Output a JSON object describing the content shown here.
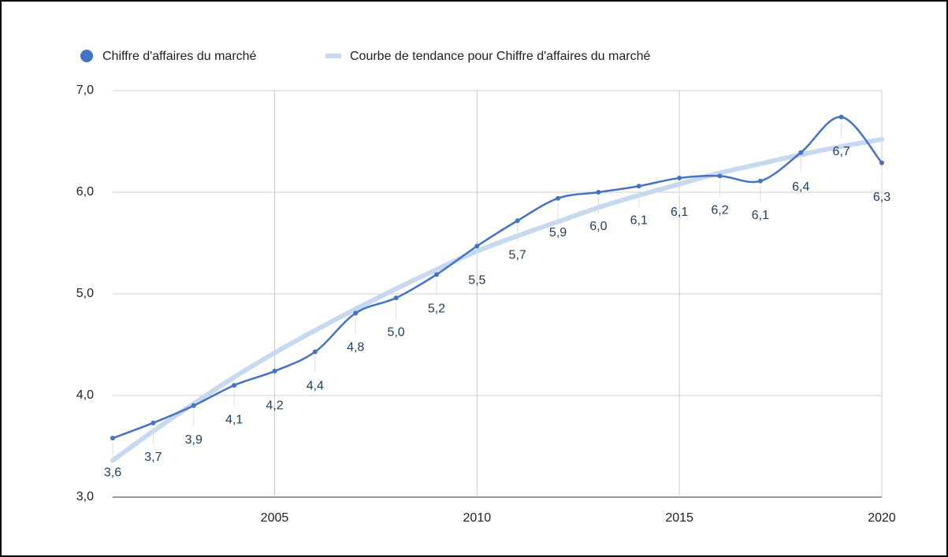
{
  "chart_data": {
    "type": "line",
    "x": [
      2001,
      2002,
      2003,
      2004,
      2005,
      2006,
      2007,
      2008,
      2009,
      2010,
      2011,
      2012,
      2013,
      2014,
      2015,
      2016,
      2017,
      2018,
      2019,
      2020
    ],
    "series": [
      {
        "name": "Chiffre d'affaires du marché",
        "color": "#4472c4",
        "values": [
          3.58,
          3.73,
          3.9,
          4.1,
          4.24,
          4.43,
          4.81,
          4.96,
          5.19,
          5.47,
          5.72,
          5.94,
          6.0,
          6.06,
          6.14,
          6.16,
          6.11,
          6.39,
          6.74,
          6.29
        ],
        "value_labels": [
          "3,6",
          "3,7",
          "3,9",
          "4,1",
          "4,2",
          "4,4",
          "4,8",
          "5,0",
          "5,2",
          "5,5",
          "5,7",
          "5,9",
          "6,0",
          "6,1",
          "6,1",
          "6,2",
          "6,1",
          "6,4",
          "6,7",
          "6,3"
        ]
      },
      {
        "name": "Courbe de tendance pour Chiffre d'affaires du marché",
        "color": "#c6d9f1",
        "values": [
          3.36,
          3.65,
          3.92,
          4.18,
          4.42,
          4.64,
          4.85,
          5.05,
          5.24,
          5.42,
          5.57,
          5.71,
          5.85,
          5.97,
          6.08,
          6.19,
          6.28,
          6.37,
          6.45,
          6.52
        ]
      }
    ],
    "xlim": [
      2001,
      2020
    ],
    "xticks": [
      2005,
      2010,
      2015,
      2020
    ],
    "ylim": [
      3,
      7
    ],
    "yticks": [
      {
        "value": 3,
        "label": "3,0"
      },
      {
        "value": 4,
        "label": "4,0"
      },
      {
        "value": 5,
        "label": "5,0"
      },
      {
        "value": 6,
        "label": "6,0"
      },
      {
        "value": 7,
        "label": "7,0"
      }
    ],
    "grid": true
  }
}
